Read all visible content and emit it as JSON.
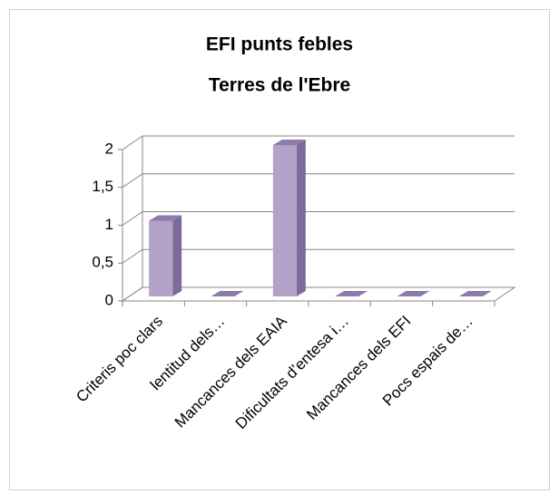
{
  "chart_data": {
    "type": "bar3d",
    "title": [
      "EFI punts febles",
      "Terres de l'Ebre"
    ],
    "categories": [
      "Criteris poc clars",
      "lentitud dels…",
      "Mancances dels EAIA",
      "Dificultats d’entesa i…",
      "Mancances dels EFI",
      "Pocs espais de…"
    ],
    "values": [
      1,
      0,
      2,
      0,
      0,
      0
    ],
    "color": "#b3a2c7",
    "ylim": [
      0,
      2
    ],
    "yticks": [
      0,
      {
        "value": 0.5,
        "label": "0,5"
      },
      1,
      {
        "value": 1.5,
        "label": "1,5"
      },
      2
    ],
    "grid": true
  }
}
